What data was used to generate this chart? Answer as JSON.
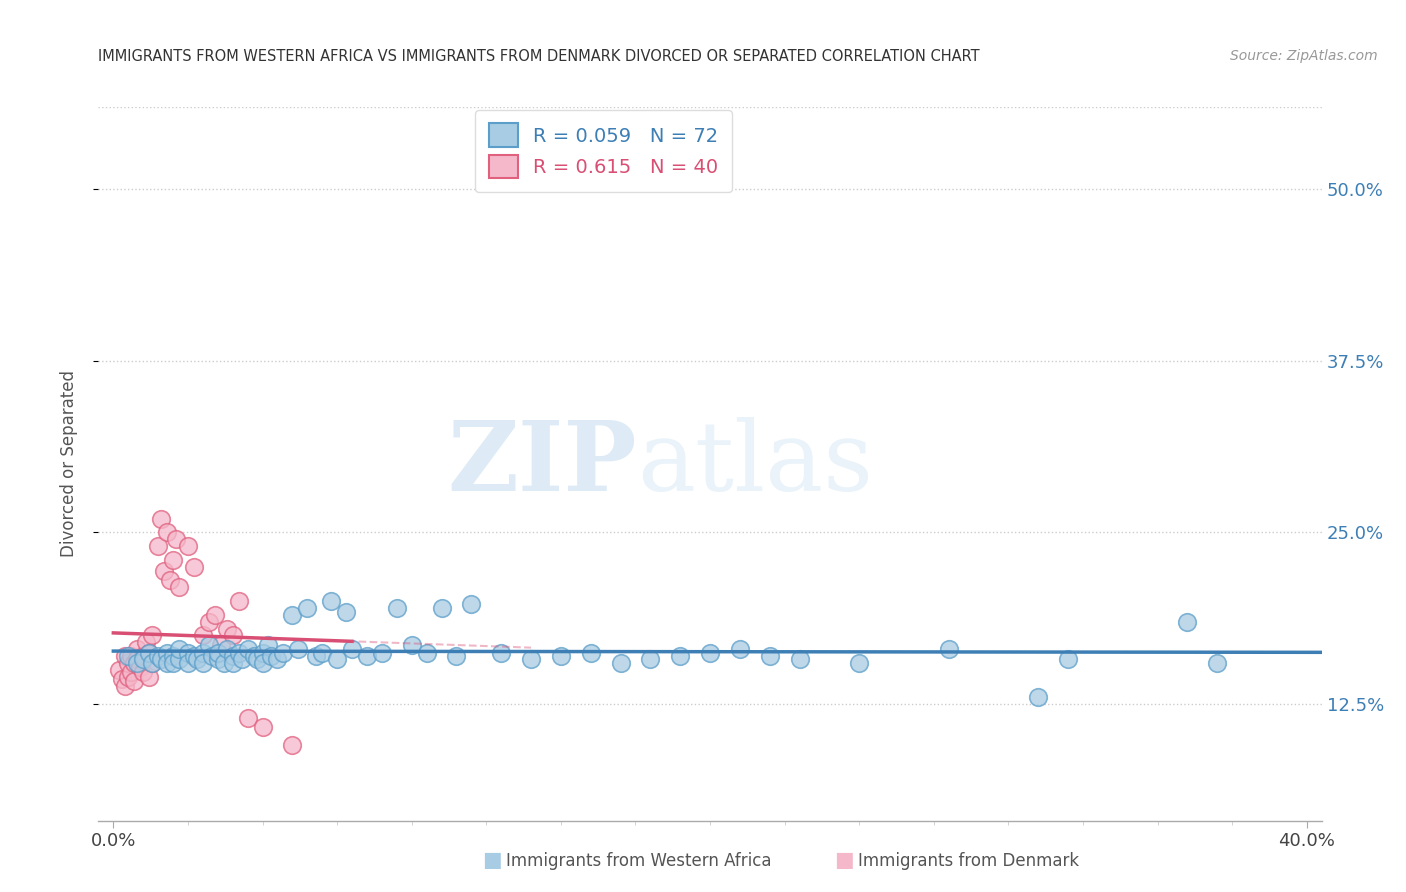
{
  "title": "IMMIGRANTS FROM WESTERN AFRICA VS IMMIGRANTS FROM DENMARK DIVORCED OR SEPARATED CORRELATION CHART",
  "source": "Source: ZipAtlas.com",
  "ylabel": "Divorced or Separated",
  "yticks": [
    "12.5%",
    "25.0%",
    "37.5%",
    "50.0%"
  ],
  "ytick_vals": [
    0.125,
    0.25,
    0.375,
    0.5
  ],
  "xtick_vals": [
    0.0,
    0.05,
    0.1,
    0.15,
    0.2,
    0.25,
    0.3,
    0.35,
    0.4
  ],
  "xlim": [
    -0.005,
    0.405
  ],
  "ylim": [
    0.04,
    0.56
  ],
  "legend_label1": "Immigrants from Western Africa",
  "legend_label2": "Immigrants from Denmark",
  "R1": 0.059,
  "N1": 72,
  "R2": 0.615,
  "N2": 40,
  "color_blue": "#a8cce4",
  "color_pink": "#f5b8cb",
  "color_blue_edge": "#5b9ec9",
  "color_pink_edge": "#e0607e",
  "color_blue_line": "#3d7fb5",
  "color_pink_line": "#d94f74",
  "watermark_zip": "ZIP",
  "watermark_atlas": "atlas",
  "blue_dots": [
    [
      0.005,
      0.16
    ],
    [
      0.008,
      0.155
    ],
    [
      0.01,
      0.158
    ],
    [
      0.012,
      0.162
    ],
    [
      0.013,
      0.155
    ],
    [
      0.015,
      0.16
    ],
    [
      0.016,
      0.158
    ],
    [
      0.018,
      0.162
    ],
    [
      0.018,
      0.155
    ],
    [
      0.02,
      0.16
    ],
    [
      0.02,
      0.155
    ],
    [
      0.022,
      0.158
    ],
    [
      0.022,
      0.165
    ],
    [
      0.025,
      0.162
    ],
    [
      0.025,
      0.155
    ],
    [
      0.027,
      0.16
    ],
    [
      0.028,
      0.158
    ],
    [
      0.03,
      0.162
    ],
    [
      0.03,
      0.155
    ],
    [
      0.032,
      0.168
    ],
    [
      0.033,
      0.16
    ],
    [
      0.035,
      0.158
    ],
    [
      0.035,
      0.162
    ],
    [
      0.037,
      0.155
    ],
    [
      0.038,
      0.165
    ],
    [
      0.04,
      0.16
    ],
    [
      0.04,
      0.155
    ],
    [
      0.042,
      0.162
    ],
    [
      0.043,
      0.158
    ],
    [
      0.045,
      0.165
    ],
    [
      0.047,
      0.16
    ],
    [
      0.048,
      0.158
    ],
    [
      0.05,
      0.162
    ],
    [
      0.05,
      0.155
    ],
    [
      0.052,
      0.168
    ],
    [
      0.053,
      0.16
    ],
    [
      0.055,
      0.158
    ],
    [
      0.057,
      0.162
    ],
    [
      0.06,
      0.19
    ],
    [
      0.062,
      0.165
    ],
    [
      0.065,
      0.195
    ],
    [
      0.068,
      0.16
    ],
    [
      0.07,
      0.162
    ],
    [
      0.073,
      0.2
    ],
    [
      0.075,
      0.158
    ],
    [
      0.078,
      0.192
    ],
    [
      0.08,
      0.165
    ],
    [
      0.085,
      0.16
    ],
    [
      0.09,
      0.162
    ],
    [
      0.095,
      0.195
    ],
    [
      0.1,
      0.168
    ],
    [
      0.105,
      0.162
    ],
    [
      0.11,
      0.195
    ],
    [
      0.115,
      0.16
    ],
    [
      0.12,
      0.198
    ],
    [
      0.13,
      0.162
    ],
    [
      0.14,
      0.158
    ],
    [
      0.15,
      0.16
    ],
    [
      0.16,
      0.162
    ],
    [
      0.17,
      0.155
    ],
    [
      0.18,
      0.158
    ],
    [
      0.19,
      0.16
    ],
    [
      0.2,
      0.162
    ],
    [
      0.21,
      0.165
    ],
    [
      0.22,
      0.16
    ],
    [
      0.23,
      0.158
    ],
    [
      0.25,
      0.155
    ],
    [
      0.28,
      0.165
    ],
    [
      0.31,
      0.13
    ],
    [
      0.32,
      0.158
    ],
    [
      0.36,
      0.185
    ],
    [
      0.37,
      0.155
    ]
  ],
  "pink_dots": [
    [
      0.002,
      0.15
    ],
    [
      0.003,
      0.143
    ],
    [
      0.004,
      0.138
    ],
    [
      0.004,
      0.16
    ],
    [
      0.005,
      0.145
    ],
    [
      0.005,
      0.155
    ],
    [
      0.006,
      0.16
    ],
    [
      0.006,
      0.148
    ],
    [
      0.007,
      0.155
    ],
    [
      0.007,
      0.142
    ],
    [
      0.008,
      0.165
    ],
    [
      0.008,
      0.158
    ],
    [
      0.009,
      0.152
    ],
    [
      0.01,
      0.148
    ],
    [
      0.01,
      0.16
    ],
    [
      0.011,
      0.17
    ],
    [
      0.012,
      0.162
    ],
    [
      0.012,
      0.145
    ],
    [
      0.013,
      0.175
    ],
    [
      0.013,
      0.155
    ],
    [
      0.015,
      0.24
    ],
    [
      0.016,
      0.26
    ],
    [
      0.017,
      0.222
    ],
    [
      0.018,
      0.25
    ],
    [
      0.019,
      0.215
    ],
    [
      0.02,
      0.23
    ],
    [
      0.021,
      0.245
    ],
    [
      0.022,
      0.21
    ],
    [
      0.025,
      0.24
    ],
    [
      0.027,
      0.225
    ],
    [
      0.03,
      0.175
    ],
    [
      0.032,
      0.185
    ],
    [
      0.034,
      0.19
    ],
    [
      0.036,
      0.168
    ],
    [
      0.038,
      0.18
    ],
    [
      0.04,
      0.175
    ],
    [
      0.042,
      0.2
    ],
    [
      0.045,
      0.115
    ],
    [
      0.05,
      0.108
    ],
    [
      0.06,
      0.095
    ]
  ]
}
